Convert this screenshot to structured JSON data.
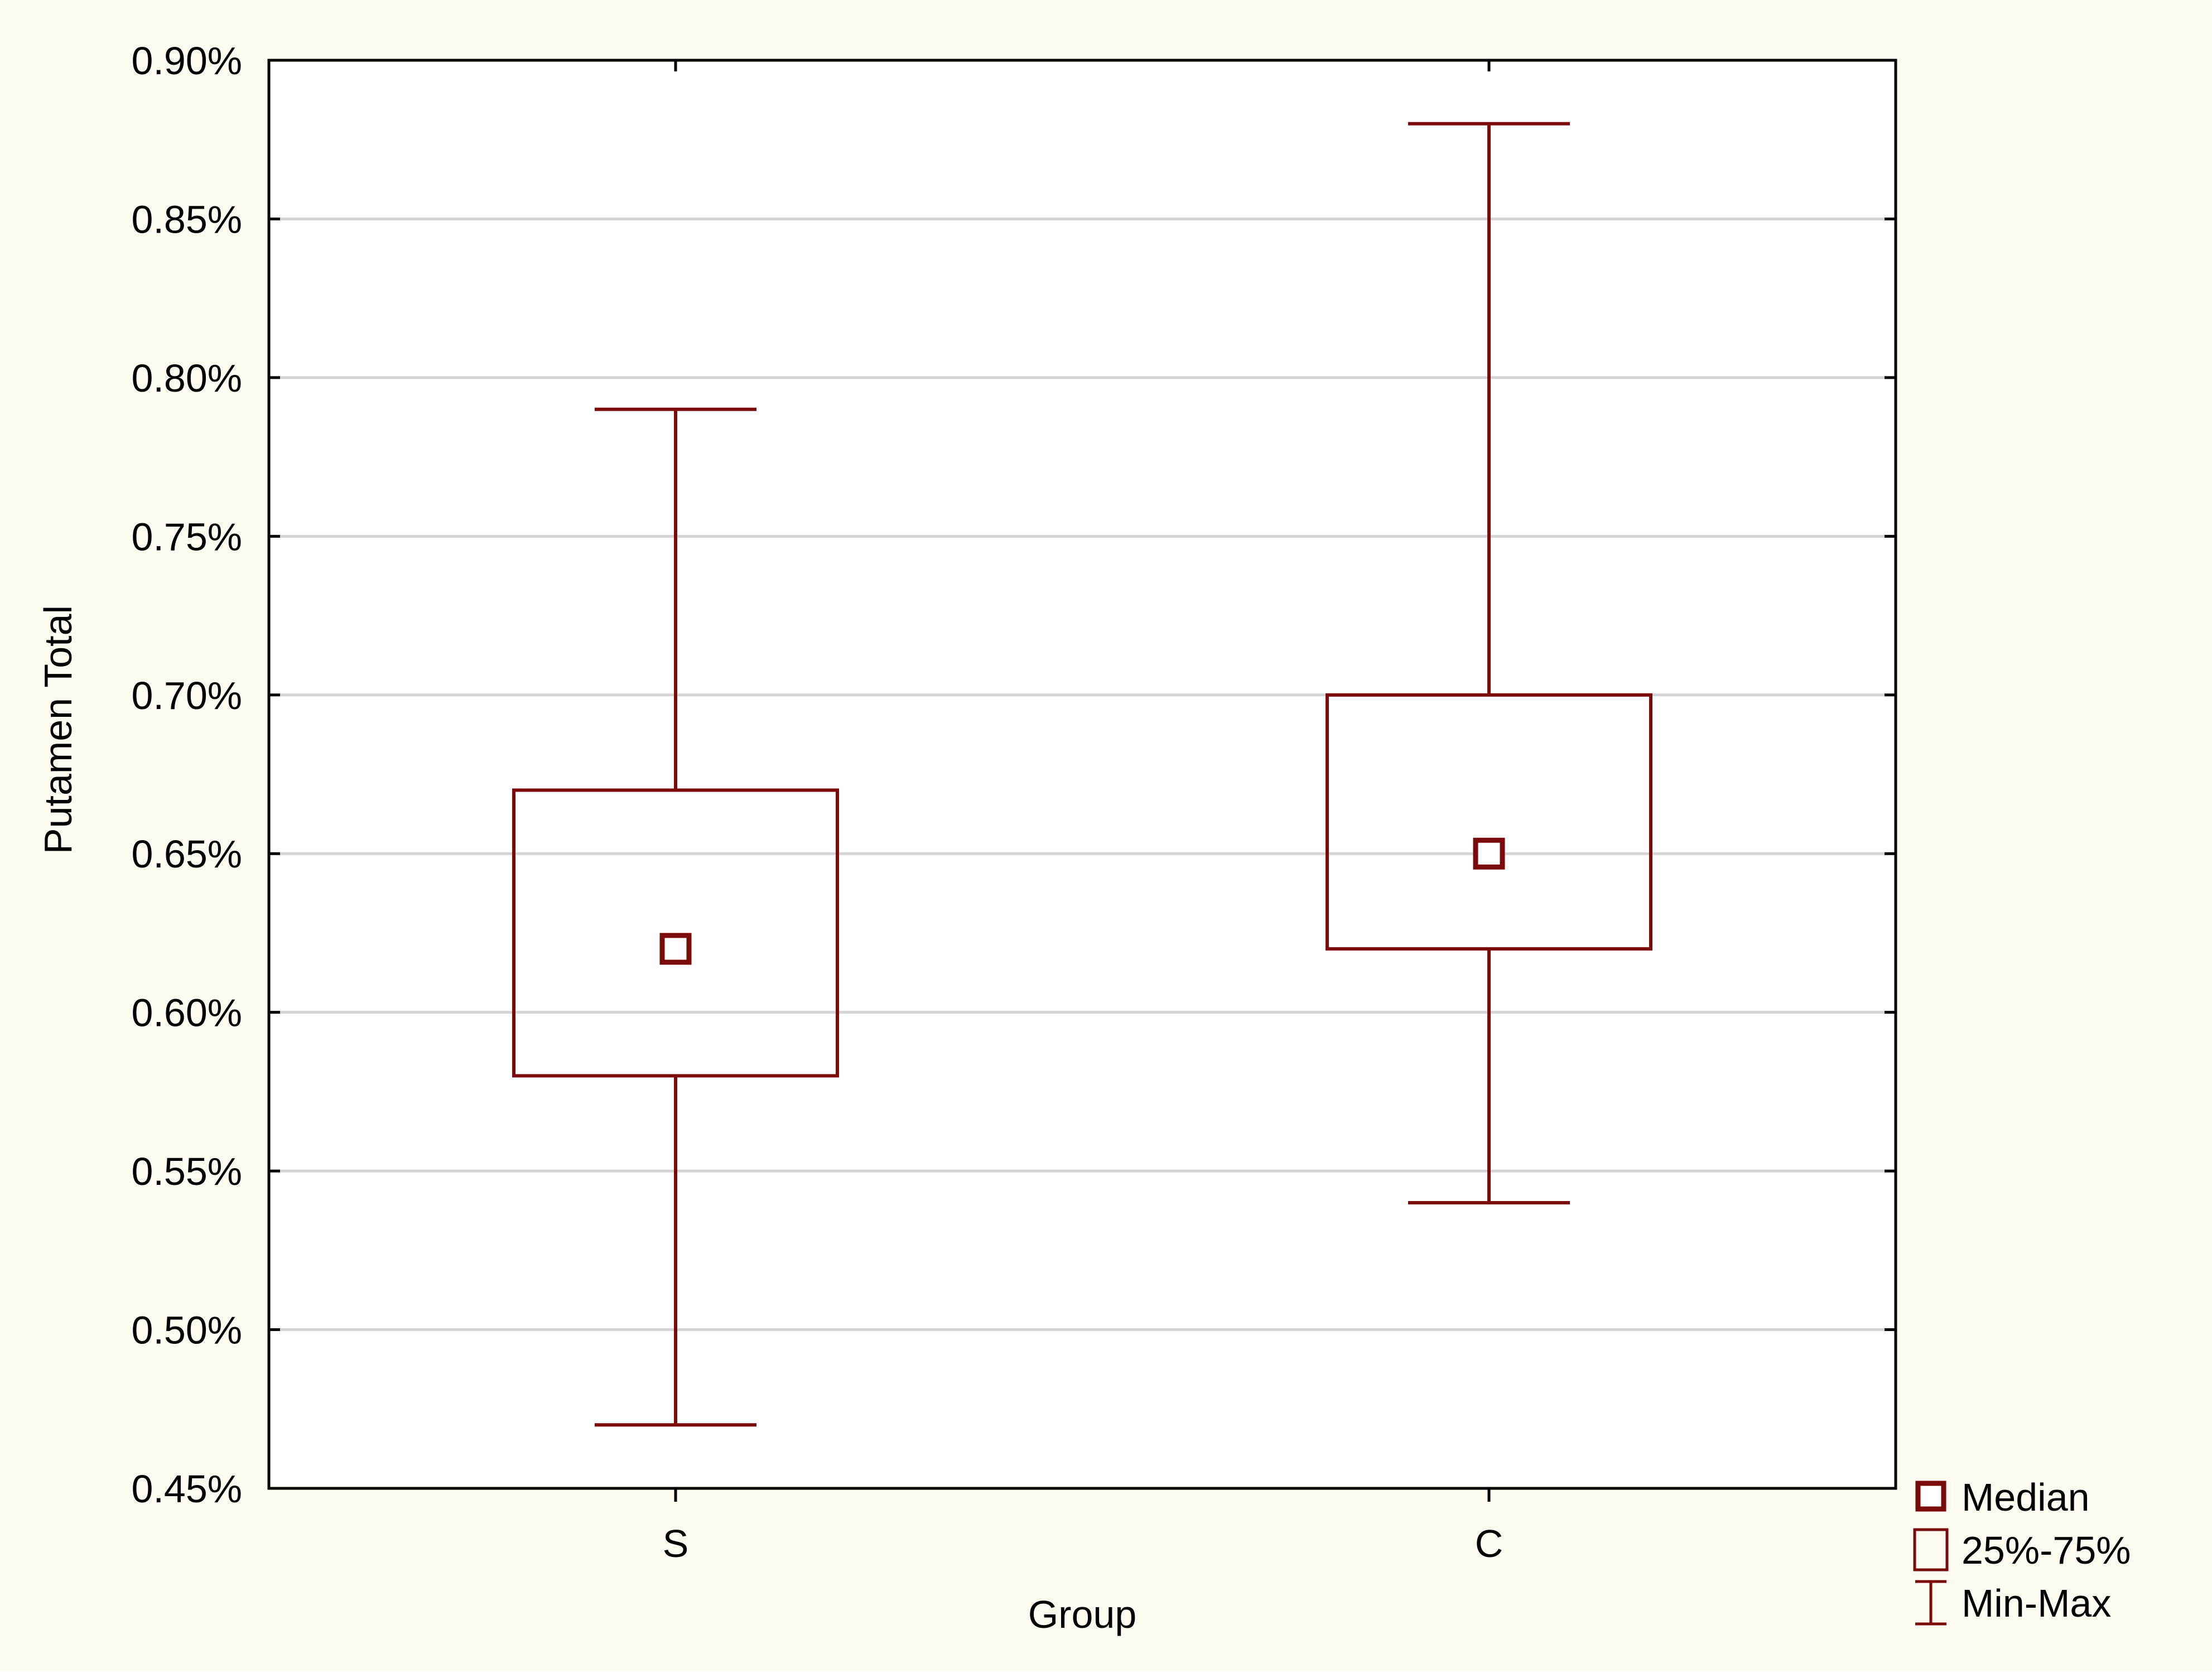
{
  "chart_data": {
    "type": "boxplot",
    "title": "",
    "xlabel": "Group",
    "ylabel": "Putamen Total",
    "categories": [
      "S",
      "C"
    ],
    "ylim": [
      0.45,
      0.9
    ],
    "yticks": [
      0.45,
      0.5,
      0.55,
      0.6,
      0.65,
      0.7,
      0.75,
      0.8,
      0.85,
      0.9
    ],
    "ytick_labels": [
      "0.45%",
      "0.50%",
      "0.55%",
      "0.60%",
      "0.65%",
      "0.70%",
      "0.75%",
      "0.80%",
      "0.85%",
      "0.90%"
    ],
    "y_unit": "%",
    "grid": true,
    "legend_position": "bottom-right",
    "series": [
      {
        "category": "S",
        "min": 0.47,
        "q1": 0.58,
        "median": 0.62,
        "q3": 0.67,
        "max": 0.79
      },
      {
        "category": "C",
        "min": 0.54,
        "q1": 0.62,
        "median": 0.65,
        "q3": 0.7,
        "max": 0.88
      }
    ],
    "legend": [
      {
        "symbol": "median",
        "label": "Median"
      },
      {
        "symbol": "box",
        "label": "25%-75%"
      },
      {
        "symbol": "whisker",
        "label": "Min-Max"
      }
    ],
    "colors": {
      "background": "#fdfaf0",
      "plot_background": "#ffffff",
      "mark": "#7b0a0a",
      "grid": "#d4d4d4",
      "axis": "#000000"
    }
  }
}
